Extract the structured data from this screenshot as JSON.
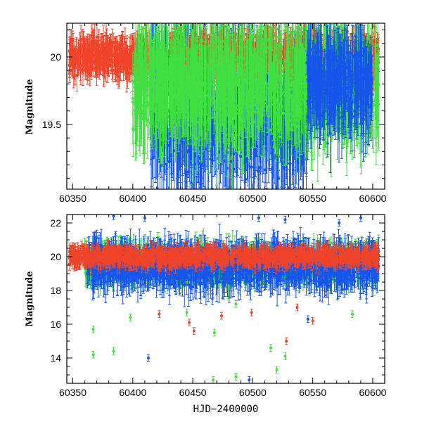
{
  "chart_data": [
    {
      "type": "scatter",
      "title": "",
      "xlabel": "",
      "ylabel": "Magnitude",
      "xlim": [
        60345,
        60610
      ],
      "ylim": [
        20.25,
        19.02
      ],
      "y_inverted": true,
      "xticks": [
        60350,
        60400,
        60450,
        60500,
        60550,
        60600
      ],
      "yticks": [
        19.5,
        20
      ],
      "colors": {
        "red": "#f0442a",
        "green": "#40e040",
        "blue": "#1655ec"
      },
      "bands": [
        {
          "color": "red",
          "x_range": [
            60347,
            60413
          ],
          "y_center": 20.0,
          "spread": 0.18
        },
        {
          "color": "blue",
          "x_range": [
            60415,
            60545
          ],
          "y_center": 19.6,
          "spread": 0.6
        },
        {
          "color": "red",
          "x_range": [
            60430,
            60605
          ],
          "y_center": 20.0,
          "spread": 0.2
        },
        {
          "color": "green",
          "x_range": [
            60400,
            60605
          ],
          "y_center": 19.8,
          "spread": 0.5
        },
        {
          "color": "blue",
          "x_range": [
            60545,
            60600
          ],
          "y_center": 19.8,
          "spread": 0.4
        }
      ]
    },
    {
      "type": "scatter",
      "title": "",
      "xlabel": "HJD−2400000",
      "ylabel": "Magnitude",
      "xlim": [
        60345,
        60610
      ],
      "ylim": [
        22.5,
        12.5
      ],
      "y_inverted": true,
      "xticks": [
        60350,
        60400,
        60450,
        60500,
        60550,
        60600
      ],
      "yticks": [
        14,
        16,
        18,
        20,
        22
      ],
      "colors": {
        "red": "#f0442a",
        "green": "#40e040",
        "blue": "#1655ec"
      },
      "outliers": [
        {
          "color": "green",
          "x": 60367,
          "y": 14.2
        },
        {
          "color": "green",
          "x": 60367,
          "y": 15.7
        },
        {
          "color": "green",
          "x": 60384,
          "y": 14.4
        },
        {
          "color": "green",
          "x": 60398,
          "y": 16.4
        },
        {
          "color": "blue",
          "x": 60413,
          "y": 14.0
        },
        {
          "color": "red",
          "x": 60422,
          "y": 16.6
        },
        {
          "color": "green",
          "x": 60445,
          "y": 16.7
        },
        {
          "color": "red",
          "x": 60447,
          "y": 16.1
        },
        {
          "color": "red",
          "x": 60451,
          "y": 15.6
        },
        {
          "color": "green",
          "x": 60467,
          "y": 12.7
        },
        {
          "color": "green",
          "x": 60468,
          "y": 15.5
        },
        {
          "color": "red",
          "x": 60474,
          "y": 16.5
        },
        {
          "color": "green",
          "x": 60486,
          "y": 12.9
        },
        {
          "color": "green",
          "x": 60486,
          "y": 17.2
        },
        {
          "color": "blue",
          "x": 60497,
          "y": 12.7
        },
        {
          "color": "red",
          "x": 60499,
          "y": 16.7
        },
        {
          "color": "green",
          "x": 60515,
          "y": 14.6
        },
        {
          "color": "green",
          "x": 60520,
          "y": 13.3
        },
        {
          "color": "green",
          "x": 60527,
          "y": 14.1
        },
        {
          "color": "red",
          "x": 60528,
          "y": 15.0
        },
        {
          "color": "red",
          "x": 60537,
          "y": 17.0
        },
        {
          "color": "blue",
          "x": 60546,
          "y": 16.3
        },
        {
          "color": "red",
          "x": 60550,
          "y": 16.2
        },
        {
          "color": "green",
          "x": 60583,
          "y": 16.6
        },
        {
          "color": "blue",
          "x": 60384,
          "y": 22.4
        },
        {
          "color": "blue",
          "x": 60410,
          "y": 22.3
        },
        {
          "color": "blue",
          "x": 60505,
          "y": 22.3
        },
        {
          "color": "blue",
          "x": 60527,
          "y": 22.2
        },
        {
          "color": "blue",
          "x": 60572,
          "y": 22.0
        },
        {
          "color": "blue",
          "x": 60590,
          "y": 22.3
        }
      ],
      "bands": [
        {
          "color": "green",
          "x_range": [
            60360,
            60605
          ],
          "y_center": 19.6,
          "spread": 1.3
        },
        {
          "color": "blue",
          "x_range": [
            60362,
            60605
          ],
          "y_center": 19.5,
          "spread": 1.6
        },
        {
          "color": "red",
          "x_range": [
            60347,
            60605
          ],
          "y_center": 20.0,
          "spread": 0.7
        }
      ]
    }
  ]
}
